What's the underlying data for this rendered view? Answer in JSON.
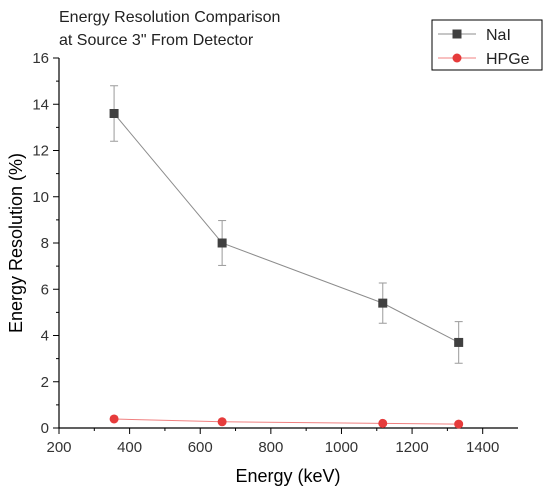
{
  "chart_data": {
    "type": "line",
    "title_lines": [
      "Energy Resolution Comparison",
      "at Source 3\" From Detector"
    ],
    "xlabel": "Energy (keV)",
    "ylabel": "Energy Resolution (%)",
    "xlim": [
      200,
      1500
    ],
    "ylim": [
      0,
      16
    ],
    "xticks": [
      200,
      400,
      600,
      800,
      1000,
      1200,
      1400
    ],
    "yticks": [
      0,
      2,
      4,
      6,
      8,
      10,
      12,
      14,
      16
    ],
    "grid": false,
    "legend_position": "top-right",
    "series": [
      {
        "name": "NaI",
        "marker": "square",
        "color": "#404040",
        "line_color": "#8c8c8c",
        "x": [
          356,
          662,
          1117,
          1332
        ],
        "y": [
          13.6,
          8.0,
          5.4,
          3.7
        ],
        "yerr": [
          1.2,
          0.97,
          0.87,
          0.9
        ]
      },
      {
        "name": "HPGe",
        "marker": "circle",
        "color": "#e63b3b",
        "line_color": "#f08080",
        "x": [
          356,
          662,
          1117,
          1332
        ],
        "y": [
          0.39,
          0.27,
          0.2,
          0.17
        ],
        "yerr": [
          0,
          0,
          0,
          0
        ]
      }
    ]
  }
}
